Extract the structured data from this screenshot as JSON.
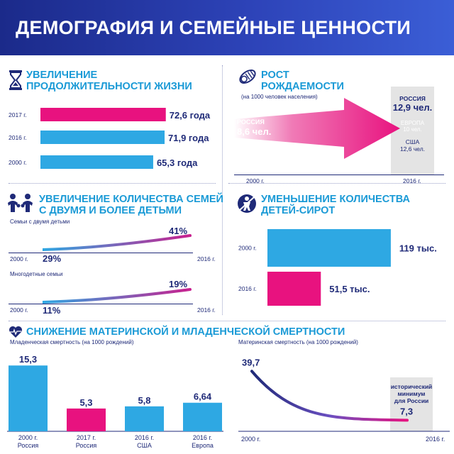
{
  "header": {
    "title": "ДЕМОГРАФИЯ И СЕМЕЙНЫЕ ЦЕННОСТИ"
  },
  "colors": {
    "navy": "#1f2a78",
    "blue": "#2ea8e3",
    "pink": "#e8127f",
    "gray": "#e4e4e4"
  },
  "life": {
    "title_line1": "УВЕЛИЧЕНИЕ",
    "title_line2": "ПРОДОЛЖИТЕЛЬНОСТИ ЖИЗНИ",
    "icon": "hourglass-icon"
  },
  "birth": {
    "title_line1": "РОСТ",
    "title_line2": "РОЖДАЕМОСТИ",
    "subtitle": "(на 1000 человек населения)",
    "icon": "baby-icon",
    "start_label": "РОССИЯ",
    "start_value": "8,6 чел.",
    "end_russia_label": "РОССИЯ",
    "end_russia_value": "12,9 чел.",
    "end_europe_label": "ЕВРОПА",
    "end_europe_value": "10 чел.",
    "end_usa_label": "США",
    "end_usa_value": "12,6 чел.",
    "year_start": "2000 г.",
    "year_end": "2016 г."
  },
  "families": {
    "title_line1": "УВЕЛИЧЕНИЕ КОЛИЧЕСТВА СЕМЕЙ",
    "title_line2": "С ДВУМЯ И БОЛЕЕ ДЕТЬМИ",
    "icon": "family-icon",
    "two_kids_label": "Семьи с двумя детьми",
    "two_start": "29%",
    "two_end": "41%",
    "many_kids_label": "Многодетные семьи",
    "many_start": "11%",
    "many_end": "19%",
    "year_start": "2000 г.",
    "year_end": "2016 г."
  },
  "orphans": {
    "title_line1": "УМЕНЬШЕНИЕ КОЛИЧЕСТВА",
    "title_line2": "ДЕТЕЙ-СИРОТ",
    "icon": "child-icon"
  },
  "mortality": {
    "title": "СНИЖЕНИЕ МАТЕРИНСКОЙ И МЛАДЕНЧЕСКОЙ СМЕРТНОСТИ",
    "icon": "heartbeat-icon",
    "infant_label": "Младенческая смертность (на 1000 рождений)",
    "maternal_label": "Материнская смертность (на 1000 рождений)",
    "maternal_note_line1": "исторический",
    "maternal_note_line2": "минимум",
    "maternal_note_line3": "для России"
  },
  "chart_data": [
    {
      "type": "bar",
      "id": "life-expectancy",
      "title": "УВЕЛИЧЕНИЕ ПРОДОЛЖИТЕЛЬНОСТИ ЖИЗНИ",
      "orientation": "horizontal",
      "categories": [
        "2017 г.",
        "2016 г.",
        "2000 г."
      ],
      "values": [
        72.6,
        71.9,
        65.3
      ],
      "labels": [
        "72,6 года",
        "71,9 года",
        "65,3 года"
      ],
      "colors": [
        "#e8127f",
        "#2ea8e3",
        "#2ea8e3"
      ],
      "xlim": [
        0,
        76
      ]
    },
    {
      "type": "line",
      "id": "two-children-families",
      "title": "Семьи с двумя детьми",
      "x": [
        "2000 г.",
        "2016 г."
      ],
      "values": [
        29,
        41
      ],
      "labels": [
        "29%",
        "41%"
      ]
    },
    {
      "type": "line",
      "id": "large-families",
      "title": "Многодетные семьи",
      "x": [
        "2000 г.",
        "2016 г."
      ],
      "values": [
        11,
        19
      ],
      "labels": [
        "11%",
        "19%"
      ]
    },
    {
      "type": "bar",
      "id": "orphans",
      "title": "УМЕНЬШЕНИЕ КОЛИЧЕСТВА ДЕТЕЙ-СИРОТ",
      "orientation": "horizontal",
      "categories": [
        "2000 г.",
        "2016 г."
      ],
      "values": [
        119,
        51.5
      ],
      "labels": [
        "119 тыс.",
        "51,5 тыс."
      ],
      "colors": [
        "#2ea8e3",
        "#e8127f"
      ],
      "xlim": [
        0,
        130
      ]
    },
    {
      "type": "bar",
      "id": "infant-mortality",
      "title": "Младенческая смертность (на 1000 рождений)",
      "categories": [
        "2000 г. Россия",
        "2017 г. Россия",
        "2016 г. США",
        "2016 г. Европа"
      ],
      "category_lines": [
        [
          "2000 г.",
          "Россия"
        ],
        [
          "2017 г.",
          "Россия"
        ],
        [
          "2016 г.",
          "США"
        ],
        [
          "2016 г.",
          "Европа"
        ]
      ],
      "values": [
        15.3,
        5.3,
        5.8,
        6.64
      ],
      "labels": [
        "15,3",
        "5,3",
        "5,8",
        "6,64"
      ],
      "colors": [
        "#2ea8e3",
        "#e8127f",
        "#2ea8e3",
        "#2ea8e3"
      ],
      "ylim": [
        0,
        16
      ]
    },
    {
      "type": "line",
      "id": "maternal-mortality",
      "title": "Материнская смертность (на 1000 рождений)",
      "x": [
        "2000 г.",
        "2016 г."
      ],
      "values": [
        39.7,
        7.3
      ],
      "labels": [
        "39,7",
        "7,3"
      ]
    }
  ]
}
